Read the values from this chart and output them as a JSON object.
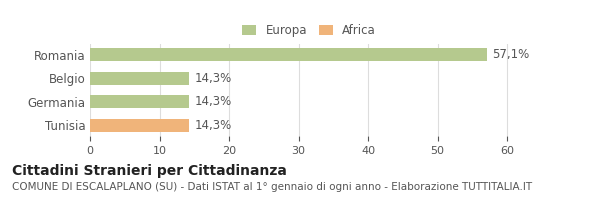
{
  "categories": [
    "Tunisia",
    "Germania",
    "Belgio",
    "Romania"
  ],
  "values": [
    14.3,
    14.3,
    14.3,
    57.1
  ],
  "bar_colors": [
    "#f0b47a",
    "#b5c98e",
    "#b5c98e",
    "#b5c98e"
  ],
  "value_labels": [
    "14,3%",
    "14,3%",
    "14,3%",
    "57,1%"
  ],
  "xlim": [
    0,
    63
  ],
  "xticks": [
    0,
    10,
    20,
    30,
    40,
    50,
    60
  ],
  "legend_items": [
    {
      "label": "Europa",
      "color": "#b5c98e"
    },
    {
      "label": "Africa",
      "color": "#f0b47a"
    }
  ],
  "title_bold": "Cittadini Stranieri per Cittadinanza",
  "subtitle": "COMUNE DI ESCALAPLANO (SU) - Dati ISTAT al 1° gennaio di ogni anno - Elaborazione TUTTITALIA.IT",
  "background_color": "#ffffff",
  "bar_height": 0.55,
  "grid_color": "#dddddd",
  "text_color": "#555555",
  "label_fontsize": 8.5,
  "tick_fontsize": 8,
  "title_fontsize": 10,
  "subtitle_fontsize": 7.5
}
